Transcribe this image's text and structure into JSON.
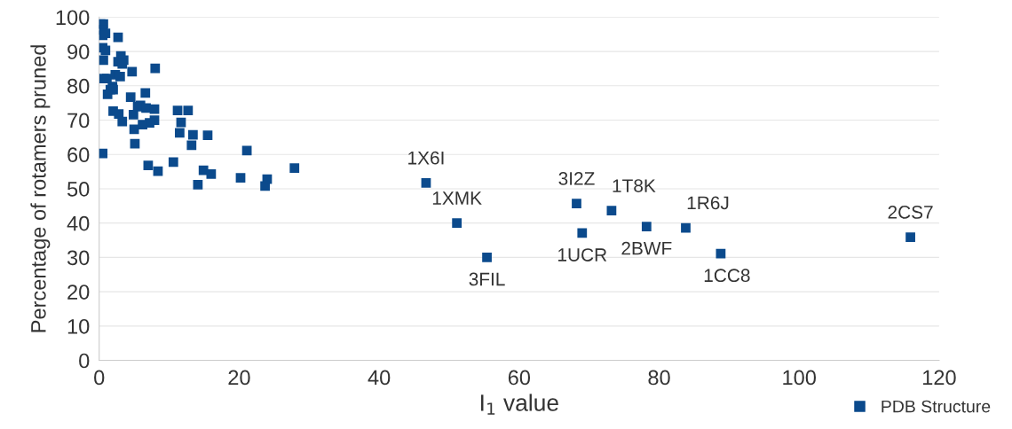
{
  "chart_data": {
    "type": "scatter",
    "xlabel": "I$_{1}$ value",
    "ylabel": "Percentage of rotamers pruned",
    "xlim": [
      0,
      120
    ],
    "xticks": [
      0,
      20,
      40,
      60,
      80,
      100,
      120
    ],
    "ylim": [
      0,
      100
    ],
    "yticks": [
      0,
      10,
      20,
      30,
      40,
      50,
      60,
      70,
      80,
      90,
      100
    ],
    "grid": "y",
    "legend": "bottom right",
    "marker": "square",
    "series": [
      {
        "name": "PDB Structure",
        "color": "#0b4a8c",
        "x": [
          0.2,
          0.6,
          0.5,
          0.9,
          0.5,
          2.7,
          0.5,
          0.9,
          3.1,
          0.6,
          2.7,
          3.5,
          3.3,
          4.7,
          8.0,
          0.7,
          1.1,
          2.3,
          3.0,
          1.9,
          1.6,
          2.0,
          1.2,
          4.5,
          6.6,
          5.9,
          5.5,
          6.7,
          7.9,
          2.0,
          2.8,
          4.9,
          3.3,
          11.2,
          12.7,
          11.7,
          7.9,
          7.2,
          6.2,
          5.0,
          11.5,
          13.4,
          15.5,
          13.2,
          5.1,
          0.5,
          21.1,
          7.0,
          8.4,
          10.6,
          14.9,
          16.0,
          14.1,
          20.2,
          24.0,
          23.7,
          27.9,
          46.7,
          51.1,
          55.4,
          68.2,
          69.0,
          73.2,
          78.2,
          83.8,
          88.8,
          115.9
        ],
        "values": [
          98.0,
          98.0,
          96.3,
          95.3,
          94.7,
          94.1,
          91.1,
          90.3,
          88.7,
          87.5,
          87.0,
          87.5,
          86.4,
          84.1,
          85.1,
          82.1,
          82.1,
          83.2,
          82.7,
          79.8,
          78.9,
          78.9,
          77.5,
          76.7,
          77.9,
          74.3,
          73.9,
          73.5,
          73.2,
          72.6,
          71.8,
          71.6,
          69.6,
          72.8,
          72.8,
          69.3,
          70.0,
          69.2,
          68.7,
          67.3,
          66.3,
          65.7,
          65.6,
          62.7,
          63.1,
          60.3,
          61.1,
          56.8,
          55.1,
          57.8,
          55.4,
          54.3,
          51.2,
          53.2,
          52.8,
          50.8,
          56.0,
          51.7,
          40.0,
          30.0,
          45.7,
          37.1,
          43.6,
          39.0,
          38.6,
          31.1,
          35.9
        ]
      }
    ],
    "annotations": [
      {
        "text": "1X6I",
        "x": 46.7,
        "y": 51.7
      },
      {
        "text": "1XMK",
        "x": 51.1,
        "y": 40.0
      },
      {
        "text": "3FIL",
        "x": 55.4,
        "y": 30.0
      },
      {
        "text": "3I2Z",
        "x": 68.2,
        "y": 45.7
      },
      {
        "text": "1UCR",
        "x": 69.0,
        "y": 37.1
      },
      {
        "text": "1T8K",
        "x": 73.2,
        "y": 43.6
      },
      {
        "text": "2BWF",
        "x": 78.2,
        "y": 39.0
      },
      {
        "text": "1R6J",
        "x": 83.8,
        "y": 38.6
      },
      {
        "text": "1CC8",
        "x": 88.8,
        "y": 31.1
      },
      {
        "text": "2CS7",
        "x": 115.9,
        "y": 35.9
      }
    ]
  }
}
